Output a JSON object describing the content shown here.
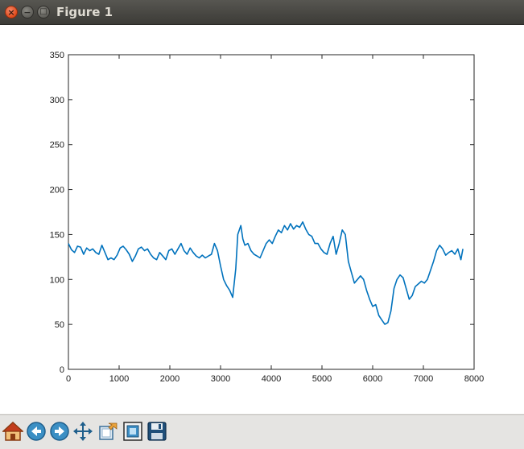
{
  "window": {
    "title": "Figure 1"
  },
  "toolbar": {
    "buttons": [
      {
        "name": "home-button",
        "icon": "home-icon"
      },
      {
        "name": "back-button",
        "icon": "back-arrow-icon"
      },
      {
        "name": "forward-button",
        "icon": "forward-arrow-icon"
      },
      {
        "name": "pan-button",
        "icon": "pan-arrows-icon"
      },
      {
        "name": "zoom-button",
        "icon": "zoom-rect-icon"
      },
      {
        "name": "subplots-button",
        "icon": "subplots-icon"
      },
      {
        "name": "save-button",
        "icon": "floppy-disk-icon"
      }
    ]
  },
  "colors": {
    "line": "#0072bd",
    "axis": "#262626"
  },
  "chart_data": {
    "type": "line",
    "title": "",
    "xlabel": "",
    "ylabel": "",
    "xlim": [
      0,
      8000
    ],
    "ylim": [
      0,
      350
    ],
    "xticks": [
      0,
      1000,
      2000,
      3000,
      4000,
      5000,
      6000,
      7000,
      8000
    ],
    "yticks": [
      0,
      50,
      100,
      150,
      200,
      250,
      300,
      350
    ],
    "xtick_labels": [
      "0",
      "1000",
      "2000",
      "3000",
      "4000",
      "5000",
      "6000",
      "7000",
      "8000"
    ],
    "ytick_labels": [
      "0",
      "50",
      "100",
      "150",
      "200",
      "250",
      "300",
      "350"
    ],
    "grid": false,
    "series": [
      {
        "x": [
          0,
          60,
          120,
          180,
          240,
          300,
          360,
          420,
          480,
          540,
          600,
          660,
          720,
          780,
          840,
          900,
          960,
          1020,
          1080,
          1140,
          1200,
          1260,
          1320,
          1380,
          1440,
          1500,
          1560,
          1620,
          1680,
          1740,
          1800,
          1860,
          1920,
          1980,
          2040,
          2100,
          2160,
          2220,
          2280,
          2340,
          2400,
          2460,
          2520,
          2580,
          2640,
          2700,
          2760,
          2820,
          2880,
          2940,
          3000,
          3060,
          3120,
          3180,
          3240,
          3300,
          3340,
          3400,
          3440,
          3480,
          3540,
          3600,
          3660,
          3720,
          3780,
          3840,
          3900,
          3960,
          4020,
          4080,
          4140,
          4200,
          4260,
          4320,
          4380,
          4440,
          4500,
          4560,
          4620,
          4680,
          4740,
          4800,
          4860,
          4920,
          4980,
          5040,
          5100,
          5160,
          5220,
          5280,
          5340,
          5400,
          5460,
          5520,
          5580,
          5640,
          5700,
          5760,
          5820,
          5880,
          5940,
          6000,
          6060,
          6120,
          6180,
          6240,
          6300,
          6360,
          6420,
          6480,
          6540,
          6600,
          6660,
          6720,
          6780,
          6840,
          6900,
          6960,
          7020,
          7080,
          7140,
          7200,
          7260,
          7320,
          7380,
          7440,
          7500,
          7560,
          7620,
          7680,
          7740,
          7780
        ],
        "y": [
          140,
          133,
          130,
          137,
          136,
          128,
          135,
          132,
          134,
          130,
          128,
          138,
          130,
          122,
          124,
          122,
          127,
          135,
          137,
          133,
          128,
          120,
          126,
          134,
          136,
          132,
          134,
          128,
          124,
          122,
          130,
          126,
          122,
          132,
          134,
          128,
          134,
          140,
          132,
          128,
          135,
          130,
          126,
          124,
          127,
          124,
          126,
          128,
          140,
          132,
          115,
          100,
          93,
          88,
          80,
          112,
          150,
          160,
          145,
          138,
          140,
          132,
          128,
          126,
          124,
          132,
          140,
          144,
          140,
          148,
          155,
          152,
          160,
          155,
          162,
          156,
          160,
          158,
          164,
          156,
          150,
          148,
          140,
          140,
          134,
          130,
          128,
          140,
          148,
          128,
          140,
          155,
          150,
          120,
          108,
          96,
          100,
          104,
          100,
          88,
          78,
          70,
          72,
          60,
          55,
          50,
          52,
          65,
          90,
          100,
          105,
          102,
          90,
          78,
          82,
          92,
          95,
          98,
          96,
          100,
          110,
          120,
          132,
          138,
          134,
          127,
          130,
          132,
          128,
          134,
          122,
          134
        ]
      }
    ]
  }
}
